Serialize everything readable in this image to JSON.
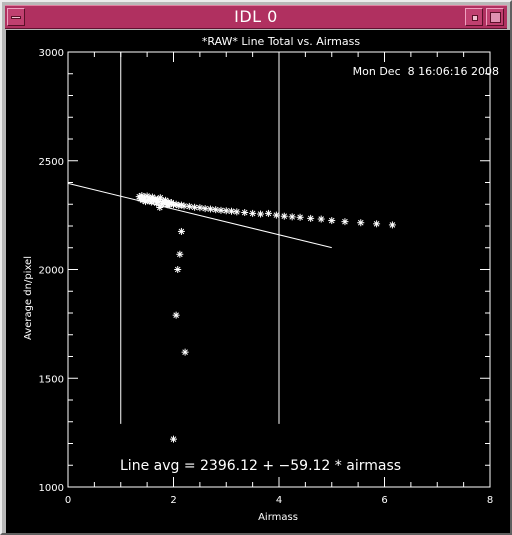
{
  "window": {
    "title": "IDL 0"
  },
  "chart_data": {
    "type": "scatter",
    "title": "*RAW* Line Total vs. Airmass",
    "timestamp": "Mon Dec  8 16:06:16 2008",
    "xlabel": "Airmass",
    "ylabel": "Average dn/pixel",
    "xlim": [
      0,
      8
    ],
    "ylim": [
      1000,
      3000
    ],
    "xticks": [
      "0",
      "2",
      "4",
      "6",
      "8"
    ],
    "yticks": [
      "1000",
      "1500",
      "2000",
      "2500",
      "3000"
    ],
    "grid": false,
    "points": [
      [
        1.35,
        2335
      ],
      [
        1.37,
        2325
      ],
      [
        1.4,
        2340
      ],
      [
        1.42,
        2318
      ],
      [
        1.45,
        2330
      ],
      [
        1.47,
        2312
      ],
      [
        1.5,
        2338
      ],
      [
        1.52,
        2320
      ],
      [
        1.55,
        2328
      ],
      [
        1.58,
        2310
      ],
      [
        1.6,
        2333
      ],
      [
        1.62,
        2318
      ],
      [
        1.65,
        2325
      ],
      [
        1.68,
        2305
      ],
      [
        1.7,
        2322
      ],
      [
        1.72,
        2312
      ],
      [
        1.75,
        2330
      ],
      [
        1.78,
        2300
      ],
      [
        1.8,
        2315
      ],
      [
        1.82,
        2305
      ],
      [
        1.85,
        2318
      ],
      [
        1.88,
        2298
      ],
      [
        1.9,
        2310
      ],
      [
        1.93,
        2300
      ],
      [
        1.96,
        2308
      ],
      [
        2.0,
        2298
      ],
      [
        2.05,
        2300
      ],
      [
        2.1,
        2294
      ],
      [
        2.15,
        2296
      ],
      [
        2.2,
        2292
      ],
      [
        2.3,
        2290
      ],
      [
        2.4,
        2286
      ],
      [
        2.5,
        2284
      ],
      [
        2.6,
        2280
      ],
      [
        2.7,
        2278
      ],
      [
        2.8,
        2275
      ],
      [
        2.9,
        2272
      ],
      [
        3.0,
        2270
      ],
      [
        3.1,
        2268
      ],
      [
        3.2,
        2265
      ],
      [
        3.35,
        2262
      ],
      [
        3.5,
        2258
      ],
      [
        3.65,
        2255
      ],
      [
        3.8,
        2258
      ],
      [
        3.95,
        2250
      ],
      [
        4.1,
        2245
      ],
      [
        4.25,
        2242
      ],
      [
        4.4,
        2240
      ],
      [
        4.6,
        2235
      ],
      [
        4.8,
        2232
      ],
      [
        5.0,
        2225
      ],
      [
        5.25,
        2220
      ],
      [
        5.55,
        2215
      ],
      [
        5.85,
        2210
      ],
      [
        6.15,
        2205
      ],
      [
        1.74,
        2285
      ],
      [
        1.9,
        2298
      ],
      [
        2.15,
        2175
      ],
      [
        2.12,
        2070
      ],
      [
        2.08,
        2000
      ],
      [
        2.05,
        1790
      ],
      [
        2.22,
        1620
      ],
      [
        2.0,
        1220
      ]
    ],
    "fit_line": {
      "label": "Line avg = 2396.12 + −59.12 * airmass",
      "intercept": 2396.12,
      "slope": -59.12,
      "x_range": [
        0,
        5
      ]
    },
    "markers": {
      "vertical_lines_x": [
        1,
        4
      ],
      "y_range": [
        1290,
        3000
      ]
    }
  }
}
